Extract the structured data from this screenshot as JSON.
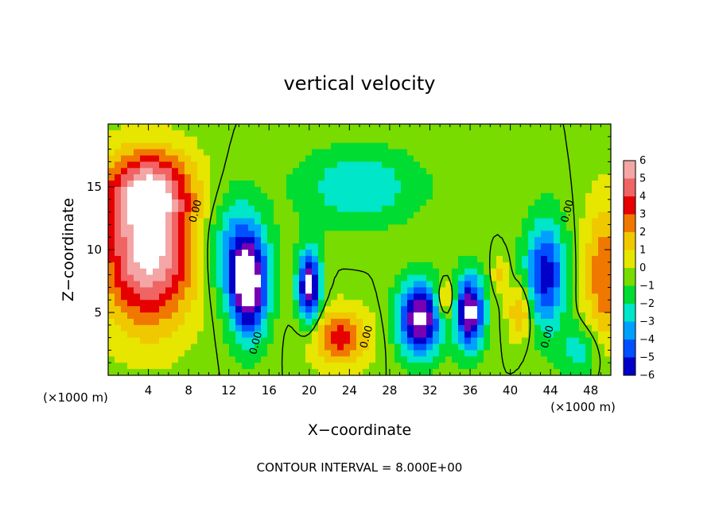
{
  "chart_data": {
    "type": "heatmap",
    "title": "vertical velocity",
    "xlabel": "X−coordinate",
    "ylabel": "Z−coordinate",
    "x_unit_left": "(×1000 m)",
    "x_unit_right": "(×1000 m)",
    "footer": "CONTOUR INTERVAL = 8.000E+00",
    "xlim": [
      0,
      50
    ],
    "ylim": [
      0,
      20
    ],
    "x_ticks": [
      4,
      8,
      12,
      16,
      20,
      24,
      28,
      32,
      36,
      40,
      44,
      48
    ],
    "x_tick_labels": [
      "4",
      "8",
      "12",
      "16",
      "20",
      "24",
      "28",
      "32",
      "36",
      "40",
      "44",
      "48"
    ],
    "y_ticks": [
      5,
      10,
      15
    ],
    "y_tick_labels": [
      "5",
      "10",
      "15"
    ],
    "colorbar": {
      "levels": [
        6,
        5,
        4,
        3,
        2,
        1,
        0,
        -1,
        -2,
        -3,
        -4,
        -5,
        -6
      ],
      "labels": [
        "6",
        "5",
        "4",
        "3",
        "2",
        "1",
        "0",
        "−1",
        "−2",
        "−3",
        "−4",
        "−5",
        "−6"
      ],
      "colors": [
        "#f4a6a6",
        "#f06464",
        "#e60000",
        "#f07800",
        "#f0c800",
        "#e6e600",
        "#78dc00",
        "#00dc32",
        "#00e6c8",
        "#00a0ff",
        "#0050ff",
        "#0000c8",
        "#7800b4"
      ]
    },
    "contour_label": "0.00",
    "field": [
      {
        "x": 4,
        "z": 10,
        "w": 7,
        "sx": 3.2,
        "sz": 4.2
      },
      {
        "x": 4,
        "z": 15,
        "w": 4,
        "sx": 3,
        "sz": 2
      },
      {
        "x": 49.5,
        "z": 8,
        "w": 3.5,
        "sx": 1.5,
        "sz": 4
      },
      {
        "x": 14,
        "z": 7,
        "w": -7,
        "sx": 1.3,
        "sz": 2.8
      },
      {
        "x": 20,
        "z": 7,
        "w": -7,
        "sx": 0.8,
        "sz": 2
      },
      {
        "x": 31,
        "z": 4.5,
        "w": -7,
        "sx": 1.5,
        "sz": 2
      },
      {
        "x": 36,
        "z": 5,
        "w": -7,
        "sx": 1,
        "sz": 2
      },
      {
        "x": 43.5,
        "z": 8,
        "w": -5,
        "sx": 1.4,
        "sz": 3
      },
      {
        "x": 23,
        "z": 3,
        "w": 4,
        "sx": 2,
        "sz": 1.6
      },
      {
        "x": 33.5,
        "z": 6,
        "w": 3.5,
        "sx": 0.6,
        "sz": 1
      },
      {
        "x": 41,
        "z": 5,
        "w": 3,
        "sx": 0.8,
        "sz": 1.5
      },
      {
        "x": 25,
        "z": 15,
        "w": -2.5,
        "sx": 4,
        "sz": 2
      },
      {
        "x": 12.5,
        "z": 10,
        "w": -3,
        "sx": 2,
        "sz": 3
      },
      {
        "x": 47,
        "z": 2,
        "w": -2,
        "sx": 1.5,
        "sz": 1.5
      },
      {
        "x": 39,
        "z": 8,
        "w": 2,
        "sx": 0.5,
        "sz": 1
      }
    ]
  }
}
